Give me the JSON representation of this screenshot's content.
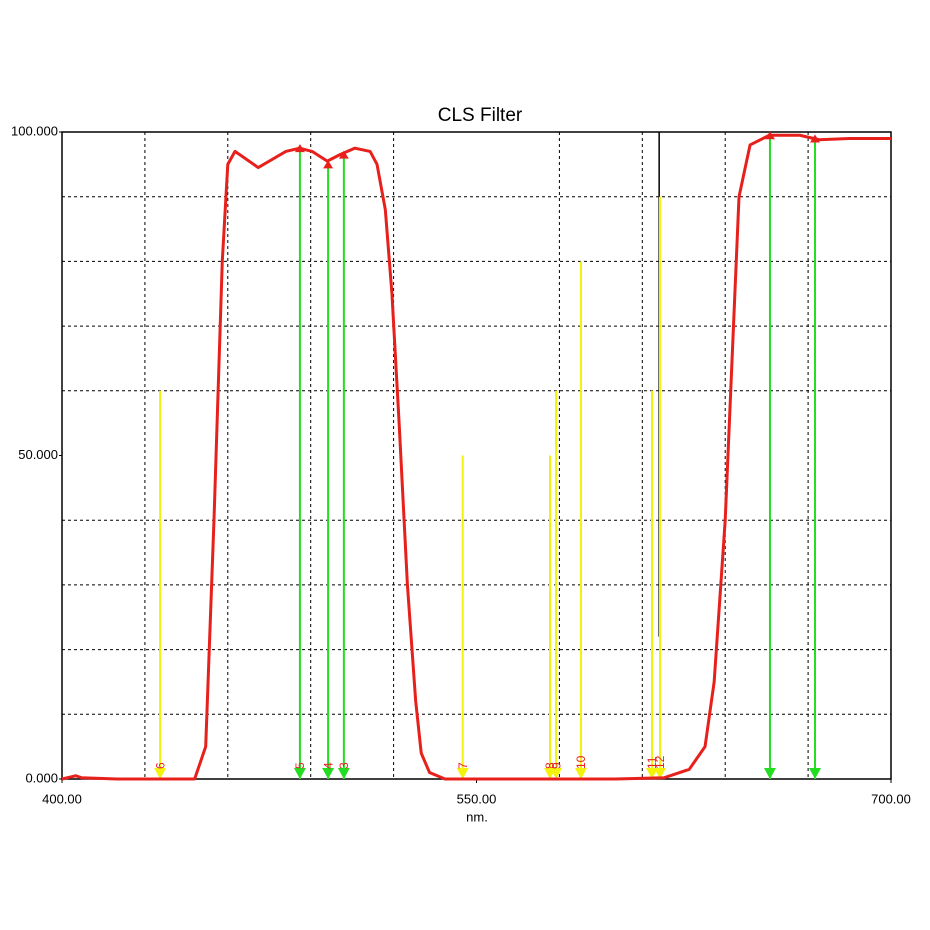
{
  "chart_data": {
    "type": "line",
    "title": "CLS Filter",
    "x_label": "nm.",
    "xlim": [
      400,
      700
    ],
    "ylim": [
      0,
      100
    ],
    "xticks": [
      {
        "value": 400,
        "label": "400.00"
      },
      {
        "value": 550,
        "label": "550.00"
      },
      {
        "value": 700,
        "label": "700.00"
      }
    ],
    "yticks": [
      {
        "value": 0,
        "label": "0.000"
      },
      {
        "value": 50,
        "label": "50.000"
      },
      {
        "value": 100,
        "label": "100.000"
      }
    ],
    "xgrid": [
      430,
      460,
      490,
      520,
      580,
      610,
      640,
      670
    ],
    "ygrid": [
      10,
      20,
      30,
      40,
      60,
      70,
      80,
      90
    ],
    "color": "#e8201c",
    "x": [
      400,
      403,
      405,
      407,
      420,
      448,
      452,
      455,
      458,
      460,
      462.6,
      466,
      471,
      475,
      481,
      486,
      490.5,
      496,
      500.6,
      506,
      511.5,
      514,
      517,
      519.4,
      522,
      525,
      528,
      530,
      533,
      538.6,
      600,
      618,
      627,
      632.7,
      636,
      640,
      643,
      645,
      649,
      656,
      667,
      674,
      685,
      700
    ],
    "values": [
      0,
      0.3,
      0.5,
      0.2,
      0,
      0,
      5,
      40,
      80,
      95,
      97,
      96,
      94.5,
      95.5,
      97,
      97.5,
      97,
      95.5,
      96.5,
      97.5,
      97,
      95,
      88,
      75,
      55,
      30,
      12,
      4,
      1,
      0,
      0,
      0.2,
      1.5,
      5,
      15,
      40,
      70,
      90,
      98,
      99.5,
      99.5,
      98.8,
      99,
      99
    ],
    "markers": [
      {
        "x": 435.5,
        "y": 60,
        "color": "#f2f20a",
        "label": "6"
      },
      {
        "x": 486.1,
        "y": 97.5,
        "color": "#22dd22",
        "label": "5"
      },
      {
        "x": 496.3,
        "y": 95,
        "color": "#22dd22",
        "label": "4"
      },
      {
        "x": 502,
        "y": 96.5,
        "color": "#22dd22",
        "label": "3"
      },
      {
        "x": 545,
        "y": 50,
        "color": "#f2f20a",
        "label": "7"
      },
      {
        "x": 576.6,
        "y": 50,
        "color": "#f2f20a",
        "label": "8"
      },
      {
        "x": 578.8,
        "y": 60,
        "color": "#f2f20a",
        "label": "9"
      },
      {
        "x": 587.8,
        "y": 80,
        "color": "#f2f20a",
        "label": "10"
      },
      {
        "x": 613.5,
        "y": 60,
        "color": "#f2f20a",
        "label": "11"
      },
      {
        "x": 616.4,
        "y": 90,
        "color": "#f2f20a",
        "label": "12"
      },
      {
        "x": 656.2,
        "y": 99.5,
        "color": "#22dd22"
      },
      {
        "x": 672.5,
        "y": 99,
        "color": "#22dd22"
      }
    ],
    "lines": [
      {
        "x": 616.1,
        "range": [
          22,
          100
        ],
        "color": "#000000"
      }
    ]
  }
}
